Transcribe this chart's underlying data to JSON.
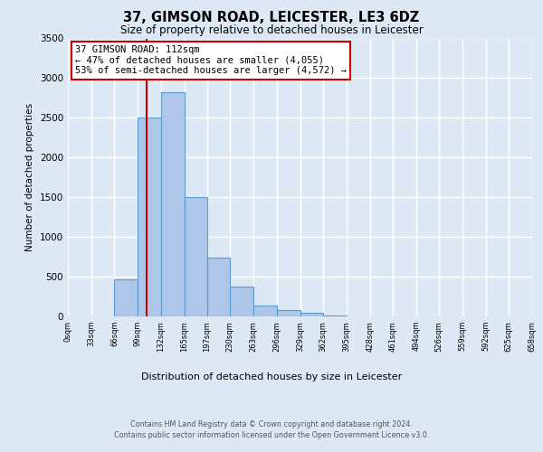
{
  "title": "37, GIMSON ROAD, LEICESTER, LE3 6DZ",
  "subtitle": "Size of property relative to detached houses in Leicester",
  "xlabel": "Distribution of detached houses by size in Leicester",
  "ylabel": "Number of detached properties",
  "bin_edges": [
    0,
    33,
    66,
    99,
    132,
    165,
    197,
    230,
    263,
    296,
    329,
    362,
    395,
    428,
    461,
    494,
    526,
    559,
    592,
    625,
    658
  ],
  "bin_labels": [
    "0sqm",
    "33sqm",
    "66sqm",
    "99sqm",
    "132sqm",
    "165sqm",
    "197sqm",
    "230sqm",
    "263sqm",
    "296sqm",
    "329sqm",
    "362sqm",
    "395sqm",
    "428sqm",
    "461sqm",
    "494sqm",
    "526sqm",
    "559sqm",
    "592sqm",
    "625sqm",
    "658sqm"
  ],
  "bar_heights": [
    0,
    0,
    470,
    2500,
    2820,
    1500,
    740,
    380,
    140,
    80,
    40,
    10,
    5,
    0,
    0,
    0,
    0,
    0,
    0,
    0
  ],
  "bar_color": "#aec6e8",
  "bar_edge_color": "#5b9bd5",
  "property_size": 112,
  "vline_color": "#cc0000",
  "annotation_text": "37 GIMSON ROAD: 112sqm\n← 47% of detached houses are smaller (4,055)\n53% of semi-detached houses are larger (4,572) →",
  "annotation_box_color": "#ffffff",
  "annotation_box_edge_color": "#cc0000",
  "ylim": [
    0,
    3500
  ],
  "yticks": [
    0,
    500,
    1000,
    1500,
    2000,
    2500,
    3000,
    3500
  ],
  "footer_line1": "Contains HM Land Registry data © Crown copyright and database right 2024.",
  "footer_line2": "Contains public sector information licensed under the Open Government Licence v3.0.",
  "background_color": "#dce9f5",
  "plot_background_color": "#dce9f5",
  "grid_color": "#ffffff"
}
